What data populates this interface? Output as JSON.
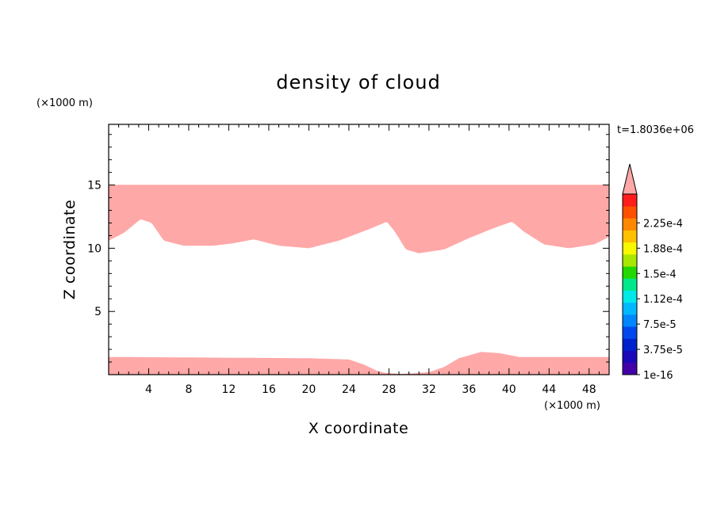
{
  "chart_data": {
    "type": "heatmap",
    "title": "density of cloud",
    "xlabel": "X coordinate",
    "ylabel": "Z coordinate",
    "x_unit": "(×1000 m)",
    "y_unit": "(×1000 m)",
    "time_label": "t=1.8036e+06",
    "xlim": [
      0,
      50
    ],
    "ylim": [
      0,
      19.8
    ],
    "x_ticks": [
      4,
      8,
      12,
      16,
      20,
      24,
      28,
      32,
      36,
      40,
      44,
      48
    ],
    "y_ticks": [
      5,
      10,
      15
    ],
    "cloud_top": 15,
    "upper_interface_km": [
      [
        0,
        10.6
      ],
      [
        1.5,
        11.2
      ],
      [
        3.2,
        12.3
      ],
      [
        4.3,
        12.0
      ],
      [
        5.5,
        10.6
      ],
      [
        7.5,
        10.2
      ],
      [
        10.5,
        10.2
      ],
      [
        12.5,
        10.4
      ],
      [
        14.5,
        10.7
      ],
      [
        17,
        10.2
      ],
      [
        20,
        10.0
      ],
      [
        23,
        10.6
      ],
      [
        26,
        11.5
      ],
      [
        27.8,
        12.1
      ],
      [
        28.6,
        11.3
      ],
      [
        29.7,
        9.9
      ],
      [
        31,
        9.6
      ],
      [
        33.5,
        9.9
      ],
      [
        36,
        10.8
      ],
      [
        38.5,
        11.6
      ],
      [
        40.3,
        12.1
      ],
      [
        41.5,
        11.3
      ],
      [
        43.5,
        10.3
      ],
      [
        46,
        10.0
      ],
      [
        48.5,
        10.3
      ],
      [
        50,
        10.9
      ]
    ],
    "lower_interface_km": [
      [
        0,
        1.4
      ],
      [
        10,
        1.35
      ],
      [
        20,
        1.3
      ],
      [
        24,
        1.2
      ],
      [
        25.5,
        0.8
      ],
      [
        26.8,
        0.3
      ],
      [
        27.5,
        0.15
      ],
      [
        29,
        0.05
      ],
      [
        30.5,
        0.1
      ],
      [
        32,
        0.2
      ],
      [
        33.5,
        0.6
      ],
      [
        35,
        1.3
      ],
      [
        37.2,
        1.8
      ],
      [
        39,
        1.7
      ],
      [
        41,
        1.4
      ],
      [
        50,
        1.4
      ]
    ],
    "colorbar": {
      "ticks": [
        "1e-16",
        "3.75e-5",
        "7.5e-5",
        "1.12e-4",
        "1.5e-4",
        "1.88e-4",
        "2.25e-4"
      ],
      "colors": [
        "#4400a8",
        "#1a08b8",
        "#0020cc",
        "#0048ee",
        "#0086ff",
        "#00b8ff",
        "#00e8e8",
        "#00e88a",
        "#22d800",
        "#a8e800",
        "#f8f800",
        "#ffc000",
        "#ff8800",
        "#ff5000",
        "#ff1c1c",
        "#ffa8a8"
      ],
      "overflow_color": "#ffa8a8"
    }
  }
}
